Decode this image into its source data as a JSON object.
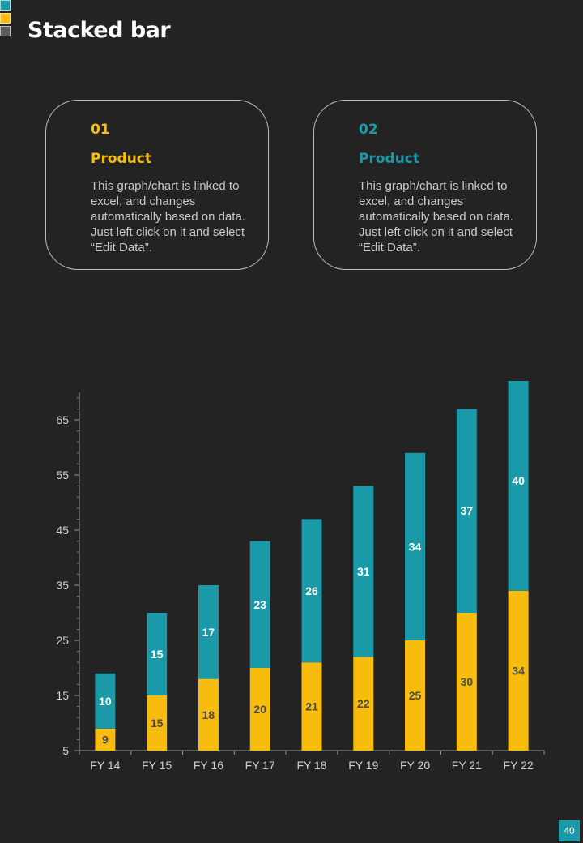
{
  "page": {
    "title": "Stacked bar",
    "page_number": "40"
  },
  "colors": {
    "background": "#232323",
    "series1": "#f7bc0e",
    "series2": "#1a9aa8",
    "label_dark": "#4a4a4a",
    "label_light": "#ffffff",
    "axis_text": "#cfcfcf"
  },
  "cards": [
    {
      "number": "01",
      "heading": "Product",
      "text": "This graph/chart is linked to excel, and changes automatically based on data. Just left click on it and select “Edit Data”."
    },
    {
      "number": "02",
      "heading": "Product",
      "text": "This graph/chart is linked to excel, and changes automatically based on data. Just left click on it and select “Edit Data”."
    }
  ],
  "chart_data": {
    "type": "bar",
    "stacked": true,
    "title": "",
    "xlabel": "",
    "ylabel": "",
    "categories": [
      "FY 14",
      "FY 15",
      "FY 16",
      "FY 17",
      "FY 18",
      "FY 19",
      "FY 20",
      "FY 21",
      "FY 22"
    ],
    "series": [
      {
        "name": "Product 01",
        "values": [
          9,
          15,
          18,
          20,
          21,
          22,
          25,
          30,
          34
        ]
      },
      {
        "name": "Product 02",
        "values": [
          10,
          15,
          17,
          23,
          26,
          31,
          34,
          37,
          40
        ]
      }
    ],
    "ylim": [
      5,
      70
    ],
    "yticks": [
      5,
      15,
      25,
      35,
      45,
      55,
      65
    ],
    "grid": false,
    "legend": "none"
  }
}
